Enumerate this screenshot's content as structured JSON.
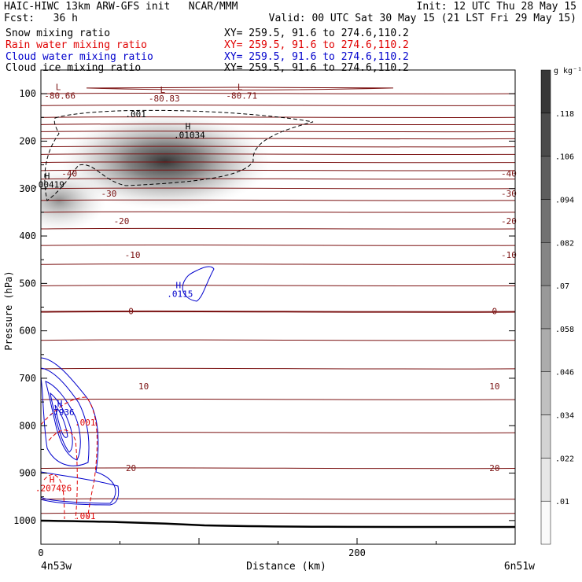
{
  "header": {
    "line1_left": "HAIC-HIWC 13km ARW-GFS init   NCAR/MMM",
    "line1_right": "Init: 12 UTC Thu 28 May 15",
    "line2_left": "Fcst:   36 h",
    "line2_right": "Valid: 00 UTC Sat 30 May 15 (21 LST Fri 29 May 15)",
    "fields": [
      {
        "name": "Snow mixing ratio",
        "xy": "XY= 259.5, 91.6 to 274.6,110.2",
        "color": "#000000"
      },
      {
        "name": "Rain water mixing ratio",
        "xy": "XY= 259.5, 91.6 to 274.6,110.2",
        "color": "#e00000"
      },
      {
        "name": "Cloud water mixing ratio",
        "xy": "XY= 259.5, 91.6 to 274.6,110.2",
        "color": "#0000cc"
      },
      {
        "name": "Cloud ice mixing ratio",
        "xy": "XY= 259.5, 91.6 to 274.6,110.2",
        "color": "#000000"
      }
    ]
  },
  "colors": {
    "temperature_contour": "#7a1010",
    "snow_shade": "#505050",
    "rain": "#e00000",
    "cloud_water": "#0000cc",
    "ice": "#000000"
  },
  "chart_data": {
    "type": "heatmap",
    "xlabel": "Distance (km)",
    "ylabel": "Pressure (hPa)",
    "xlim": [
      0,
      300
    ],
    "ylim": [
      1050,
      50
    ],
    "x_ticks": [
      0,
      200
    ],
    "y_ticks": [
      100,
      200,
      300,
      400,
      500,
      600,
      700,
      800,
      900,
      1000
    ],
    "x_endpoint_labels": [
      "4n53w",
      "6n51w"
    ],
    "colorbar": {
      "unit": "g kg⁻¹",
      "ticks": [
        ".01",
        ".022",
        ".034",
        ".046",
        ".058",
        ".07",
        ".082",
        ".094",
        ".106",
        ".118"
      ]
    },
    "temperature_contour_labels": [
      {
        "text": "-40",
        "x": 18,
        "p": 268
      },
      {
        "text": "-40",
        "x": 296,
        "p": 268
      },
      {
        "text": "-30",
        "x": 43,
        "p": 310
      },
      {
        "text": "-30",
        "x": 296,
        "p": 310
      },
      {
        "text": "-20",
        "x": 51,
        "p": 368
      },
      {
        "text": "-20",
        "x": 296,
        "p": 368
      },
      {
        "text": "-10",
        "x": 58,
        "p": 440
      },
      {
        "text": "-10",
        "x": 296,
        "p": 440
      },
      {
        "text": "0",
        "x": 57,
        "p": 558
      },
      {
        "text": "0",
        "x": 287,
        "p": 558
      },
      {
        "text": "10",
        "x": 65,
        "p": 717
      },
      {
        "text": "10",
        "x": 287,
        "p": 717
      },
      {
        "text": "20",
        "x": 57,
        "p": 889
      },
      {
        "text": "20",
        "x": 287,
        "p": 889
      }
    ],
    "extrema_labels": [
      {
        "mark": "L",
        "value": "-80.66",
        "x": 9,
        "p": 92
      },
      {
        "mark": "L",
        "value": "-80.83",
        "x": 75,
        "p": 98
      },
      {
        "mark": "L",
        "value": "-80.71",
        "x": 124,
        "p": 92
      },
      {
        "mark": "H",
        "value": ".01034",
        "x": 91,
        "p": 175
      },
      {
        "mark": "H",
        "value": ".00419",
        "x": 2,
        "p": 280
      },
      {
        "mark": "H",
        "value": ".0115",
        "x": 85,
        "p": 510
      },
      {
        "mark": "H",
        "value": ".7936",
        "x": 10,
        "p": 760
      },
      {
        "mark": "H",
        "value": ".207426",
        "x": 5,
        "p": 920
      }
    ],
    "contour_value_labels": [
      {
        "text": ".001",
        "x": 60,
        "p": 143
      },
      {
        "text": ".001",
        "x": 28,
        "p": 793
      },
      {
        "text": ".001",
        "x": 28,
        "p": 990
      }
    ]
  }
}
